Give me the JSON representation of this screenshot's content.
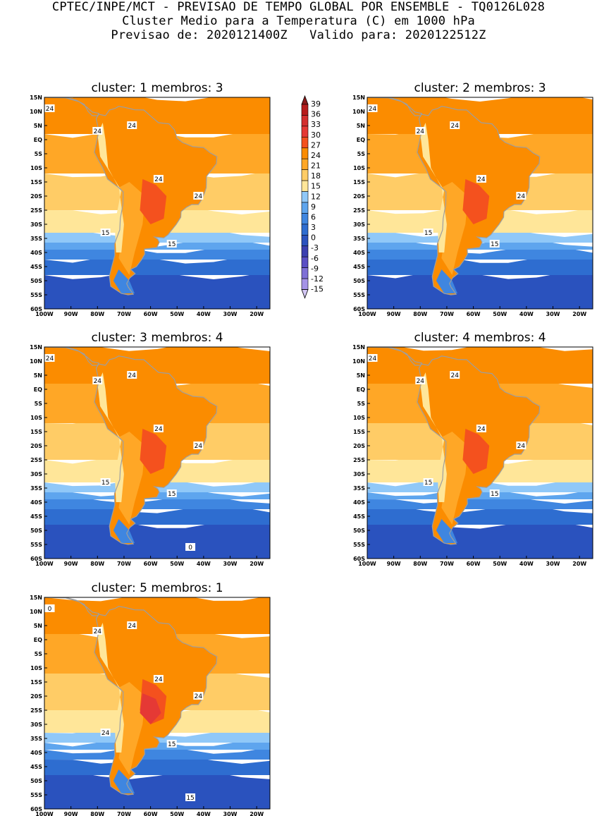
{
  "header": {
    "line1": "CPTEC/INPE/MCT - PREVISAO DE TEMPO GLOBAL POR ENSEMBLE - TQ0126L028",
    "line2": "Cluster Medio para a Temperatura (C) em 1000 hPa",
    "line3": "Previsao de: 2020121400Z   Valido para: 2020122512Z"
  },
  "axes": {
    "lat_labels": [
      "15N",
      "10N",
      "5N",
      "EQ",
      "5S",
      "10S",
      "15S",
      "20S",
      "25S",
      "30S",
      "35S",
      "40S",
      "45S",
      "50S",
      "55S",
      "60S"
    ],
    "lon_labels": [
      "100W",
      "90W",
      "80W",
      "70W",
      "60W",
      "50W",
      "40W",
      "30W",
      "20W"
    ]
  },
  "colorbar": {
    "labels": [
      "39",
      "36",
      "33",
      "30",
      "27",
      "24",
      "21",
      "18",
      "15",
      "12",
      "9",
      "6",
      "3",
      "0",
      "-3",
      "-6",
      "-9",
      "-12",
      "-15"
    ],
    "colors": {
      "gt39": "#8b1a1a",
      "36_39": "#b71c1c",
      "33_36": "#d32f2f",
      "30_33": "#e53935",
      "27_30": "#f4511e",
      "24_27": "#fb8c00",
      "21_24": "#ffa726",
      "18_21": "#ffcc66",
      "15_18": "#ffe699",
      "12_15": "#90c8f8",
      "9_12": "#5ea5ee",
      "6_9": "#3f86e0",
      "3_6": "#2e6dd0",
      "0_3": "#2a52be",
      "m3_0": "#3b3fb0",
      "m6_m3": "#5a4fc4",
      "m9_m6": "#7e6fd6",
      "m12_m9": "#a493e6",
      "lt_m12": "#d4c8f5"
    }
  },
  "panels": [
    {
      "title": "cluster: 1   membros: 3",
      "contour_labels": [
        "24",
        "24",
        "24",
        "24",
        "24",
        "15",
        "15"
      ]
    },
    {
      "title": "cluster: 2   membros: 3",
      "contour_labels": [
        "24",
        "24",
        "24",
        "24",
        "24",
        "15",
        "15"
      ]
    },
    {
      "title": "cluster: 3   membros: 4",
      "contour_labels": [
        "24",
        "24",
        "24",
        "24",
        "24",
        "15",
        "15",
        "0"
      ]
    },
    {
      "title": "cluster: 4   membros: 4",
      "contour_labels": [
        "24",
        "24",
        "24",
        "24",
        "24",
        "15",
        "15"
      ]
    },
    {
      "title": "cluster: 5   membros: 1",
      "contour_labels": [
        "24",
        "24",
        "24",
        "24",
        "24",
        "24",
        "15",
        "15",
        "0"
      ]
    }
  ]
}
